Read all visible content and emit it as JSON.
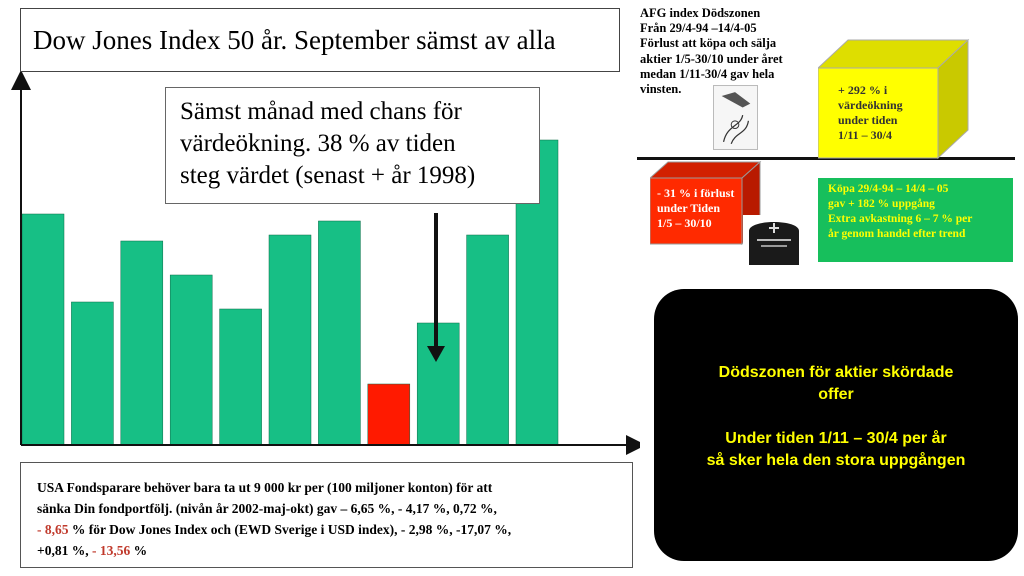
{
  "title": "Dow Jones Index 50 år. September sämst av alla",
  "callout": {
    "lines": [
      "Sämst månad med chans för",
      "värdeökning. 38 % av tiden",
      "steg värdet (senast + år 1998)"
    ]
  },
  "afg": {
    "lines": [
      "AFG index Dödszonen",
      "Från 29/4-94 –14/4-05",
      "Förlust att köpa och sälja",
      "aktier 1/5-30/10 under året",
      "medan 1/11-30/4 gav hela",
      "vinsten."
    ]
  },
  "yellow_box": {
    "lines": [
      "+ 292 % i",
      "värdeökning",
      "under tiden",
      "1/11 – 30/4"
    ],
    "color": "#ffff00"
  },
  "red_box": {
    "lines": [
      "- 31 % i förlust",
      "under Tiden",
      "1/5 – 30/10"
    ],
    "color": "#ff2a00"
  },
  "green_box": {
    "lines": [
      "Köpa 29/4-94 – 14/4 – 05",
      "gav + 182 % uppgång",
      "Extra avkastning 6 – 7 % per",
      "år genom handel efter trend"
    ],
    "color": "#17bf5c"
  },
  "black_box": {
    "line1": "Dödszonen för aktier skördade",
    "line2": "offer",
    "line3": "Under tiden 1/11 – 30/4 per år",
    "line4": "så sker hela den stora uppgången"
  },
  "footnote": {
    "line1": "USA Fondsparare behöver bara ta ut 9 000 kr per (100 miljoner konton) för att",
    "line2": "sänka Din fondportfölj. (nivån år 2002-maj-okt) gav – 6,65 %, - 4,17 %, 0,72 %,",
    "line3_a": "- ",
    "line3_hl": "8,65",
    "line3_b": " % för Dow Jones Index och (EWD Sverige i USD index), - 2,98 %, -17,07 %,",
    "line4_a": "+0,81 %, ",
    "line4_hl": "- 13,56",
    "line4_b": " %"
  },
  "chart_data": {
    "type": "bar",
    "title": "",
    "xlabel": "",
    "ylabel": "",
    "values": [
      231,
      143,
      204,
      170,
      136,
      210,
      224,
      61,
      122,
      210,
      305
    ],
    "highlight_index": 7,
    "bar_color": "#17bf85",
    "highlight_color": "#ff1a00",
    "ylim": [
      0,
      360
    ],
    "grid": false
  }
}
